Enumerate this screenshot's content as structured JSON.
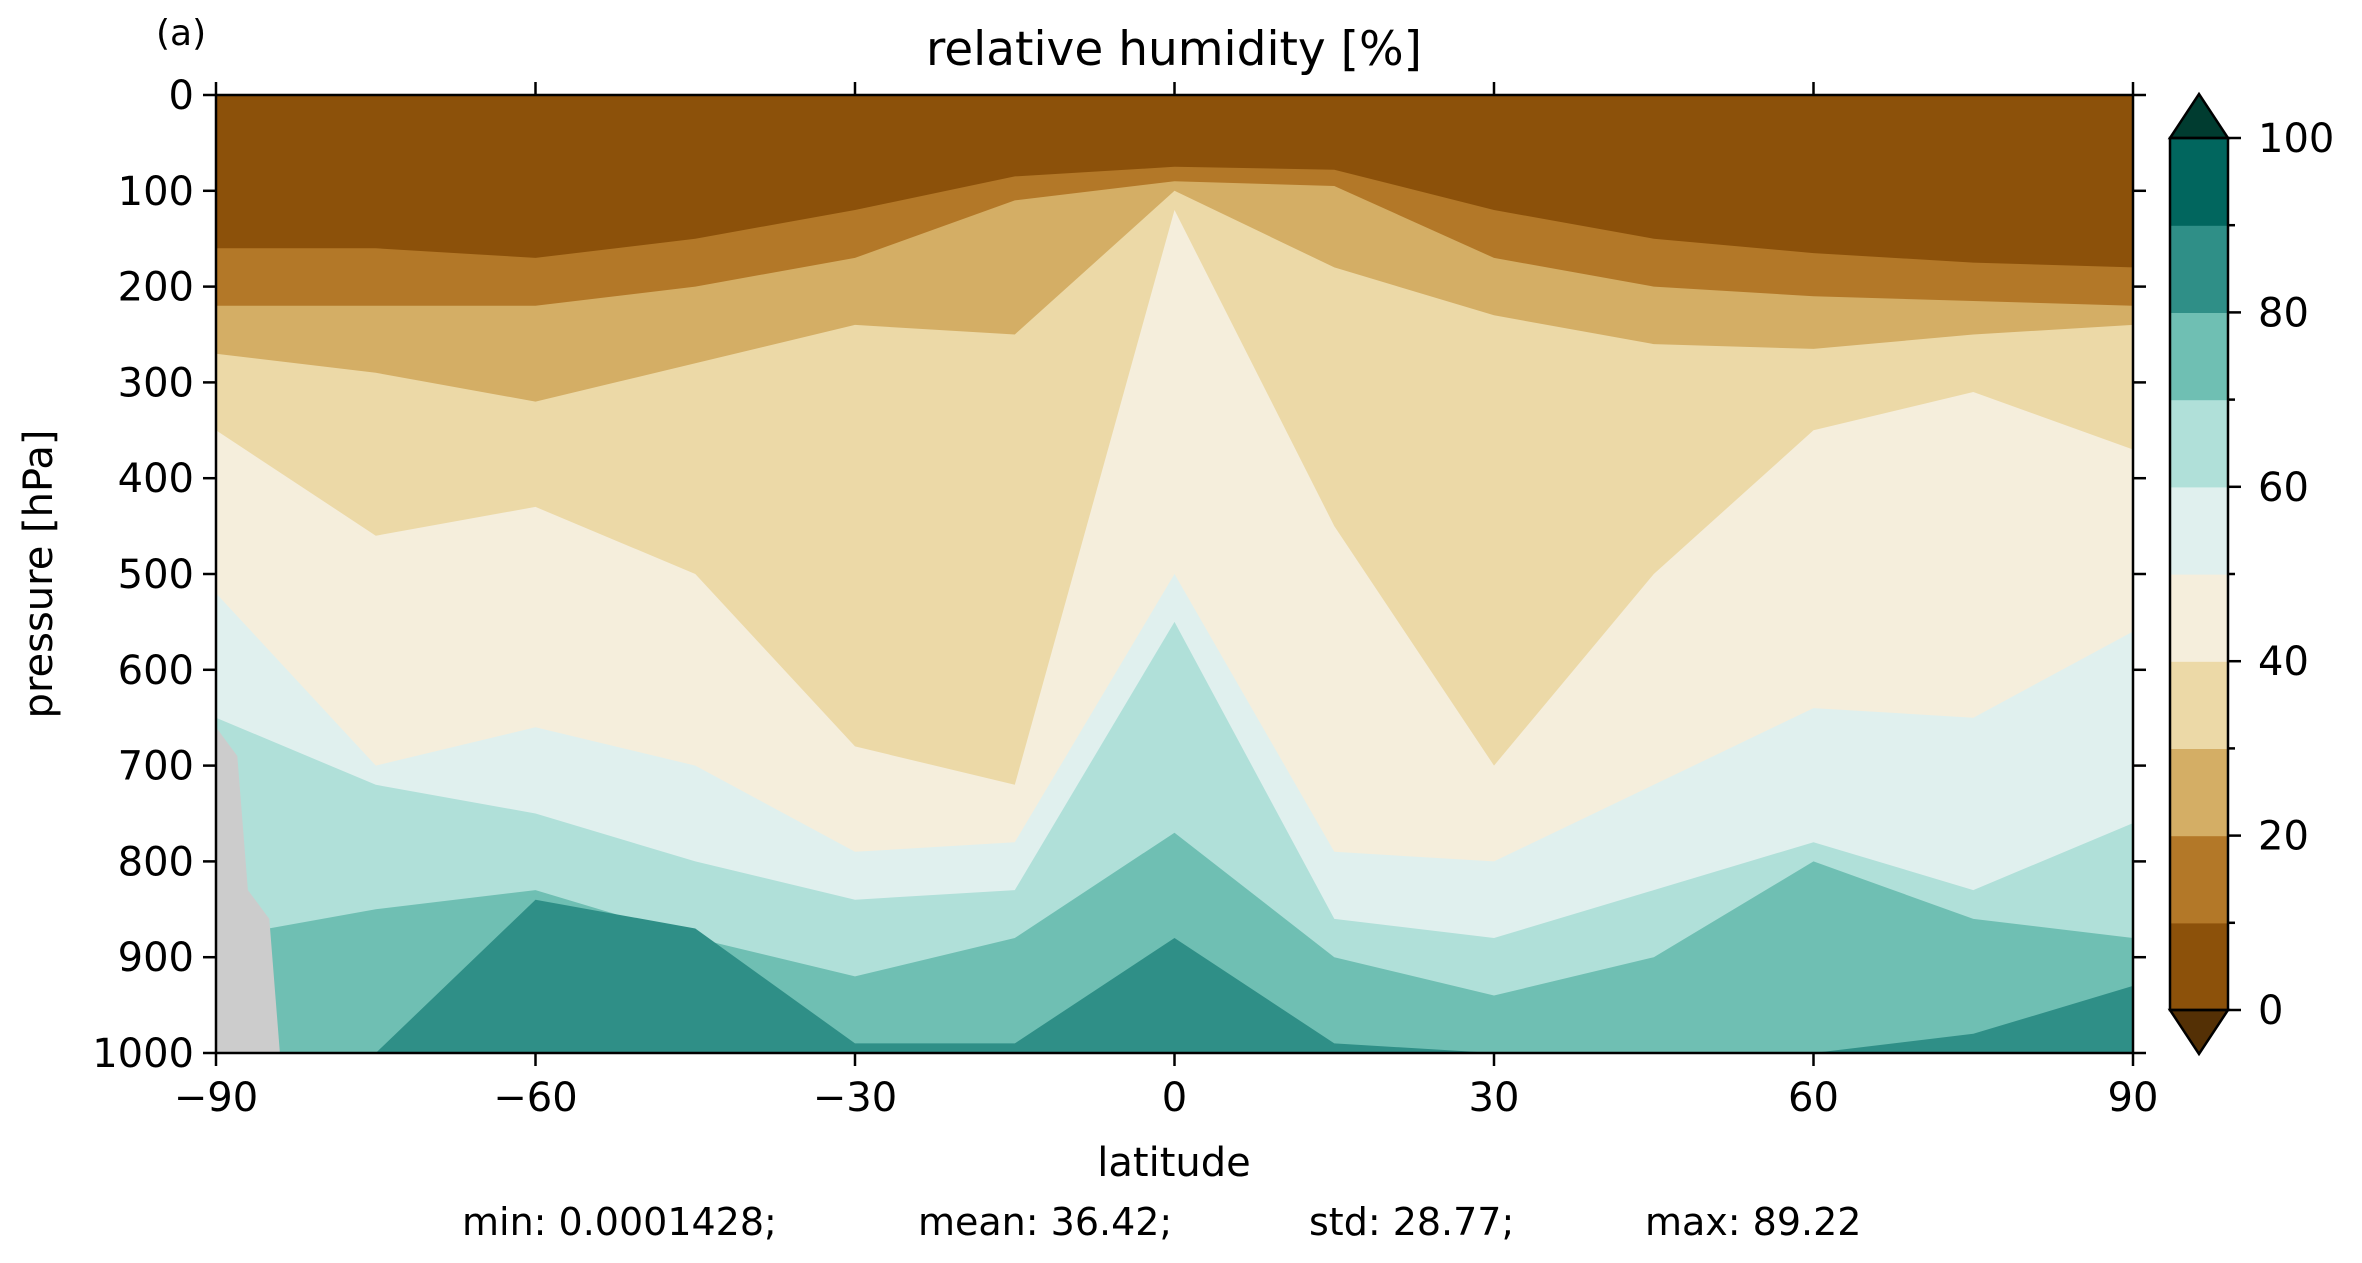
{
  "panel_label": "(a)",
  "chart_data": {
    "type": "heatmap",
    "subtype": "filled-contour",
    "title": "relative humidity [%]",
    "xlabel": "latitude",
    "ylabel": "pressure [hPa]",
    "xlim": [
      -90,
      90
    ],
    "ylim": [
      1000,
      0
    ],
    "y_inverted": true,
    "xticks": [
      -90,
      -60,
      -30,
      0,
      30,
      60,
      90
    ],
    "xtick_labels": [
      "−90",
      "−60",
      "−30",
      "0",
      "30",
      "60",
      "90"
    ],
    "yticks": [
      0,
      100,
      200,
      300,
      400,
      500,
      600,
      700,
      800,
      900,
      1000
    ],
    "ytick_labels": [
      "0",
      "100",
      "200",
      "300",
      "400",
      "500",
      "600",
      "700",
      "800",
      "900",
      "1000"
    ],
    "grid": false,
    "missing_data_color": "#cccccc",
    "colorbar": {
      "levels": [
        0,
        10,
        20,
        30,
        40,
        50,
        60,
        70,
        80,
        90,
        100
      ],
      "colors": [
        "#8c510a",
        "#b37828",
        "#d4ae65",
        "#ecd9a7",
        "#f5eedc",
        "#e0f0ee",
        "#b0e0d9",
        "#6fbfb3",
        "#2f8f87",
        "#01665e"
      ],
      "under_color": "#543005",
      "over_color": "#003c30",
      "extend": "both",
      "tick_values": [
        0,
        20,
        40,
        60,
        80,
        100
      ],
      "tick_labels": [
        "0",
        "20",
        "40",
        "60",
        "80",
        "100"
      ]
    },
    "contour_boundaries": {
      "lat": [
        -90,
        -75,
        -60,
        -45,
        -30,
        -15,
        0,
        15,
        30,
        45,
        60,
        75,
        90
      ],
      "p_at_10pct": [
        160,
        160,
        170,
        150,
        120,
        85,
        75,
        78,
        120,
        150,
        165,
        175,
        180
      ],
      "p_at_20pct": [
        220,
        220,
        220,
        200,
        170,
        110,
        90,
        95,
        170,
        200,
        210,
        215,
        220
      ],
      "p_at_30pct": [
        270,
        290,
        320,
        280,
        240,
        250,
        100,
        180,
        230,
        260,
        265,
        250,
        240
      ],
      "p_at_40pct": [
        350,
        460,
        430,
        500,
        680,
        720,
        120,
        450,
        700,
        500,
        350,
        310,
        370
      ],
      "p_at_50pct": [
        520,
        700,
        660,
        700,
        790,
        780,
        500,
        790,
        800,
        720,
        640,
        650,
        560
      ],
      "p_at_60pct": [
        650,
        720,
        750,
        800,
        840,
        830,
        550,
        860,
        880,
        830,
        780,
        830,
        760
      ],
      "p_at_70pct": [
        880,
        850,
        830,
        880,
        920,
        880,
        770,
        900,
        940,
        900,
        800,
        860,
        880
      ],
      "p_at_80pct": [
        1000,
        1000,
        840,
        870,
        990,
        990,
        880,
        990,
        1000,
        1000,
        1000,
        980,
        930
      ]
    }
  },
  "stats": {
    "min": "min: 0.0001428;",
    "mean": "mean: 36.42;",
    "std": "std: 28.77;",
    "max": "max: 89.22"
  }
}
